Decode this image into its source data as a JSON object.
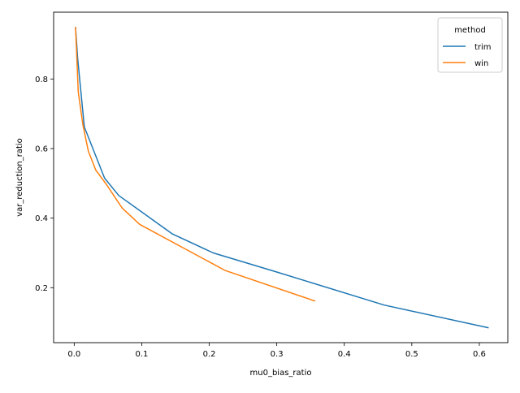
{
  "chart_data": {
    "type": "line",
    "xlabel": "mu0_bias_ratio",
    "ylabel": "var_reduction_ratio",
    "xlim": [
      -0.0305,
      0.6422
    ],
    "ylim": [
      0.042,
      0.992
    ],
    "xticks": [
      0.0,
      0.1,
      0.2,
      0.3,
      0.4,
      0.5,
      0.6
    ],
    "xtick_labels": [
      "0.0",
      "0.1",
      "0.2",
      "0.3",
      "0.4",
      "0.5",
      "0.6"
    ],
    "yticks": [
      0.2,
      0.4,
      0.6,
      0.8
    ],
    "ytick_labels": [
      "0.2",
      "0.4",
      "0.6",
      "0.8"
    ],
    "grid": false,
    "legend": {
      "title": "method",
      "position": "top-right"
    },
    "series": [
      {
        "name": "trim",
        "color": "#1f77b4",
        "x": [
          0.002,
          0.005,
          0.015,
          0.045,
          0.066,
          0.145,
          0.206,
          0.3,
          0.459,
          0.613
        ],
        "y": [
          0.948,
          0.861,
          0.662,
          0.515,
          0.465,
          0.355,
          0.3,
          0.245,
          0.15,
          0.085
        ]
      },
      {
        "name": "win",
        "color": "#ff7f0e",
        "x": [
          0.002,
          0.006,
          0.013,
          0.021,
          0.032,
          0.048,
          0.071,
          0.097,
          0.223,
          0.356
        ],
        "y": [
          0.948,
          0.763,
          0.667,
          0.592,
          0.538,
          0.496,
          0.429,
          0.382,
          0.25,
          0.162
        ]
      }
    ]
  }
}
